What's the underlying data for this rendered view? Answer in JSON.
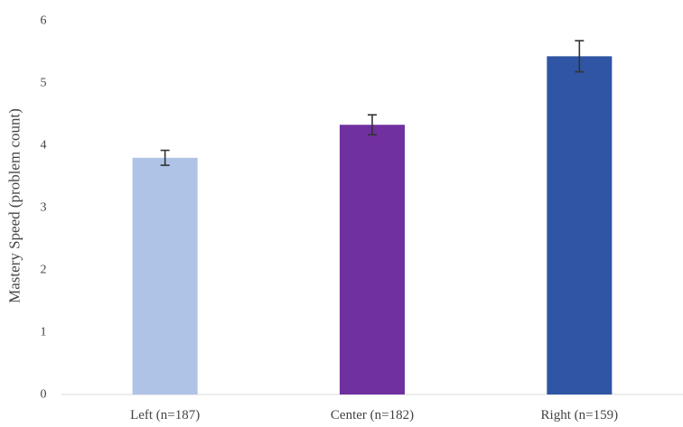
{
  "chart_data": {
    "type": "bar",
    "title": "",
    "xlabel": "",
    "ylabel": "Mastery Speed (problem count)",
    "ylim": [
      0,
      6
    ],
    "yticks": [
      0,
      1,
      2,
      3,
      4,
      5,
      6
    ],
    "grid": false,
    "categories": [
      "Left (n=187)",
      "Center (n=182)",
      "Right (n=159)"
    ],
    "values": [
      3.8,
      4.33,
      5.43
    ],
    "error": [
      0.12,
      0.16,
      0.25
    ],
    "colors": [
      "#aec3e6",
      "#7030a0",
      "#2f55a4"
    ],
    "error_bar_color": "#333333",
    "axis_color": "#d9d9d9"
  }
}
